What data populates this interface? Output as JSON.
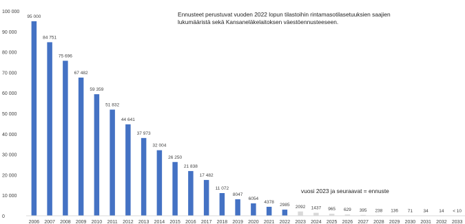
{
  "note": {
    "line1": "Ennusteet perustuvat vuoden 2022 lopun tilastoihin rintamasotilasetuuksien saajien",
    "line2": "lukumääristä sekä Kansaneläkelaitoksen väestöennusteeseen."
  },
  "forecast_label": "vuosi 2023 ja seuraavat = ennuste",
  "chart_data": {
    "type": "bar",
    "title": "",
    "xlabel": "",
    "ylabel": "",
    "ylim": [
      0,
      100000
    ],
    "grid": false,
    "colors": {
      "actual": "#4472c4",
      "forecast": "#d9d9d9",
      "text": "#404040"
    },
    "y_ticks": [
      {
        "value": 0,
        "label": "0"
      },
      {
        "value": 10000,
        "label": "10 000"
      },
      {
        "value": 20000,
        "label": "20 000"
      },
      {
        "value": 30000,
        "label": "30 000"
      },
      {
        "value": 40000,
        "label": "40 000"
      },
      {
        "value": 50000,
        "label": "50 000"
      },
      {
        "value": 60000,
        "label": "60 000"
      },
      {
        "value": 70000,
        "label": "70 000"
      },
      {
        "value": 80000,
        "label": "80 000"
      },
      {
        "value": 90000,
        "label": "90 000"
      },
      {
        "value": 100000,
        "label": "100 000"
      }
    ],
    "categories": [
      "2006",
      "2007",
      "2008",
      "2009",
      "2010",
      "2011",
      "2012",
      "2013",
      "2014",
      "2015",
      "2016",
      "2017",
      "2018",
      "2019",
      "2020",
      "2021",
      "2022",
      "2023",
      "2024",
      "2025",
      "2026",
      "2027",
      "2028",
      "2029",
      "2030",
      "2031",
      "2032",
      "2033"
    ],
    "values": [
      95000,
      84751,
      75696,
      67482,
      59359,
      51832,
      44641,
      37973,
      32004,
      26250,
      21838,
      17482,
      11072,
      8047,
      6054,
      4378,
      2985,
      2092,
      1437,
      965,
      629,
      395,
      238,
      136,
      71,
      34,
      14,
      null
    ],
    "data_labels": [
      "95 000",
      "84 751",
      "75 696",
      "67 482",
      "59 359",
      "51 832",
      "44 641",
      "37 973",
      "32 004",
      "26 250",
      "21 838",
      "17 482",
      "11 072",
      "8047",
      "6054",
      "4378",
      "2985",
      "2092",
      "1437",
      "965",
      "629",
      "395",
      "238",
      "136",
      "71",
      "34",
      "14",
      "< 10"
    ],
    "forecast_from": "2023"
  }
}
